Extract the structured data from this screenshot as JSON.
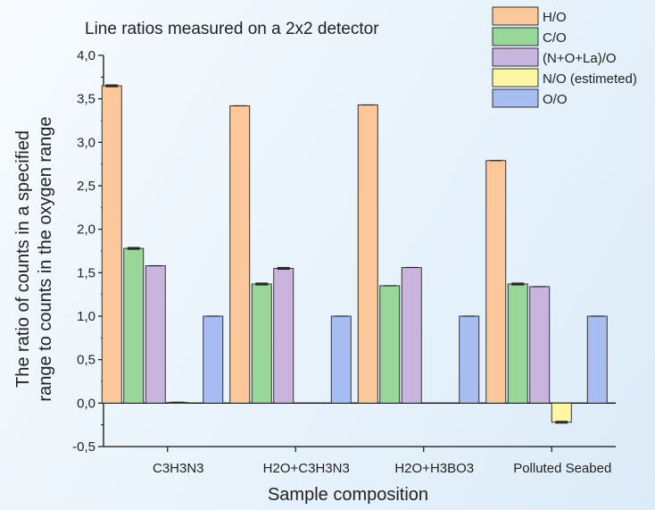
{
  "chart_data": {
    "type": "bar",
    "title": "Line ratios measured on a 2x2 detector",
    "xlabel": "Sample composition",
    "ylabel_line1": "The ratio of counts in a specified",
    "ylabel_line2": "range to counts in the oxygen range",
    "ylim": [
      -0.5,
      4.0
    ],
    "yticks": [
      "-0,5",
      "0,0",
      "0,5",
      "1,0",
      "1,5",
      "2,0",
      "2,5",
      "3,0",
      "3,5",
      "4,0"
    ],
    "ytick_values": [
      -0.5,
      0,
      0.5,
      1.0,
      1.5,
      2.0,
      2.5,
      3.0,
      3.5,
      4.0
    ],
    "categories": [
      "C3H3N3",
      "H2O+C3H3N3",
      "H2O+H3BO3",
      "Polluted Seabed"
    ],
    "grid": false,
    "legend_position": "top-right",
    "series": [
      {
        "name": "H/O",
        "color": "#fbc79b",
        "values": [
          3.65,
          3.42,
          3.43,
          2.79
        ],
        "errors": [
          0.01,
          0.0,
          0.0,
          0.0
        ]
      },
      {
        "name": "C/O",
        "color": "#98d69a",
        "values": [
          1.78,
          1.37,
          1.35,
          1.37
        ],
        "errors": [
          0.01,
          0.01,
          0.0,
          0.01
        ]
      },
      {
        "name": "(N+O+La)/O",
        "color": "#c8b4dc",
        "values": [
          1.58,
          1.55,
          1.56,
          1.34
        ],
        "errors": [
          0.0,
          0.01,
          0.0,
          0.0
        ]
      },
      {
        "name": "N/O (estimeted)",
        "color": "#fdf7a3",
        "values": [
          0.01,
          null,
          null,
          -0.22
        ],
        "errors": [
          0.0,
          0.0,
          0.0,
          0.01
        ]
      },
      {
        "name": "O/O",
        "color": "#a7bcf1",
        "values": [
          1.0,
          1.0,
          1.0,
          1.0
        ],
        "errors": [
          0.0,
          0.0,
          0.0,
          0.0
        ]
      }
    ]
  }
}
